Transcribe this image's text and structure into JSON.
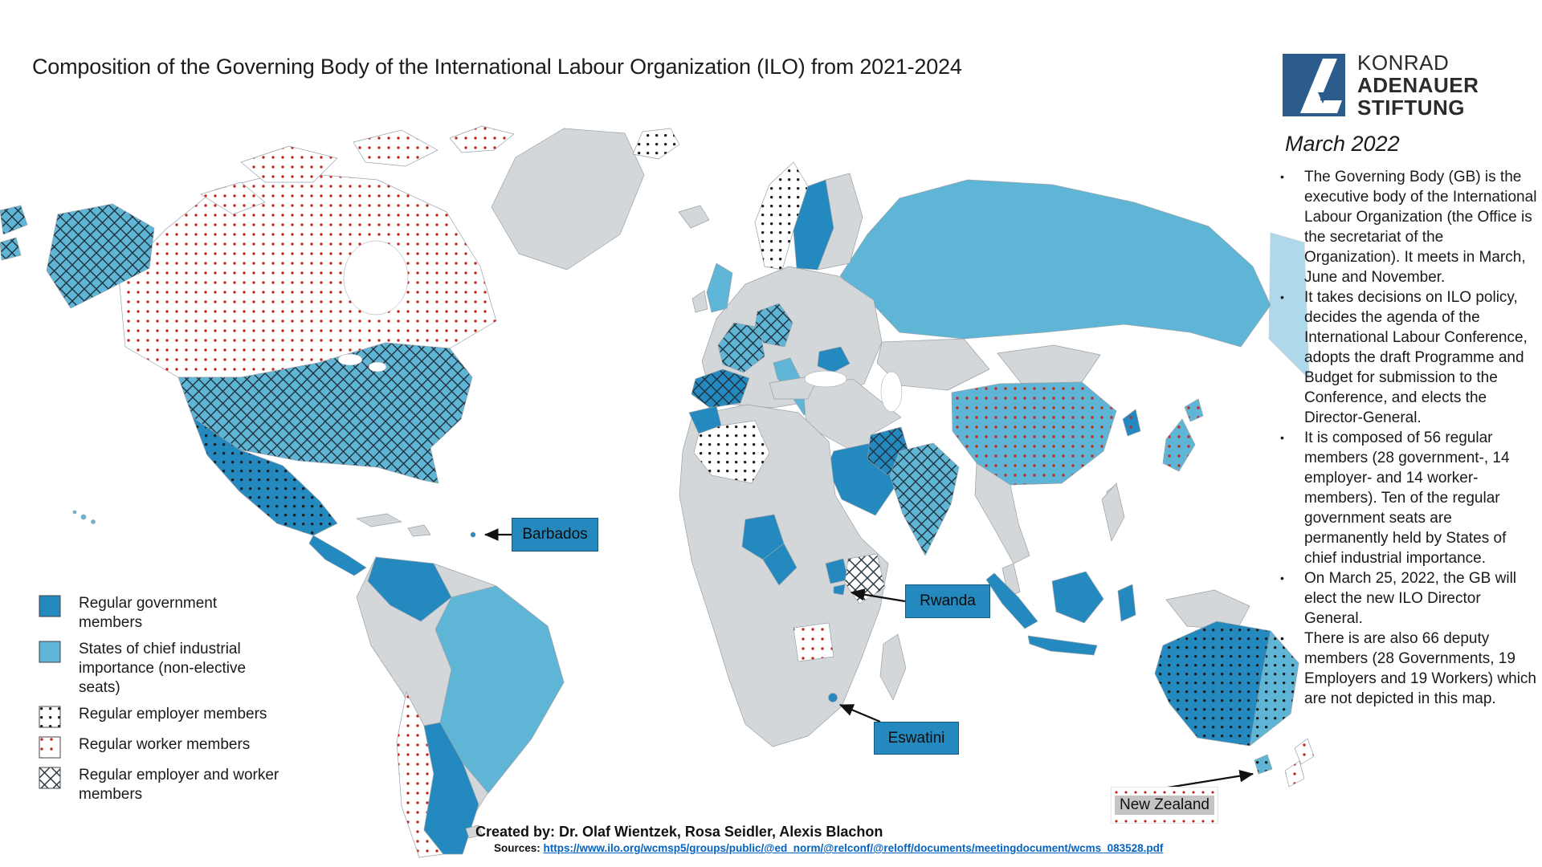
{
  "title": "Composition of the Governing Body of the International Labour Organization (ILO) from 2021-2024",
  "logo": {
    "name_lines": [
      "KONRAD",
      "ADENAUER",
      "STIFTUNG"
    ]
  },
  "date_label": "March 2022",
  "bullet_char": "•",
  "bullets": [
    "The Governing Body (GB) is the executive body of the International Labour Organization (the Office is the secretariat of the Organization). It meets in March, June and November.",
    "It takes decisions on ILO policy, decides the agenda of the International Labour Conference, adopts the draft Programme and Budget for submission to the Conference, and elects the Director-General.",
    "It is composed of 56 regular members (28 government-, 14 employer- and 14 worker-members). Ten of the regular government seats are permanently held by States of chief industrial importance.",
    "On March 25, 2022, the GB will elect the new ILO Director General.",
    "There is are also 66 deputy members (28 Governments, 19 Employers and 19 Workers) which are not depicted in this map."
  ],
  "legend": {
    "items": [
      {
        "label": "Regular government members",
        "base": "government",
        "overlay": null
      },
      {
        "label": "States of chief industrial importance (non-elective seats)",
        "base": "chief",
        "overlay": null
      },
      {
        "label": "Regular employer members",
        "base": "none",
        "overlay": "employer"
      },
      {
        "label": "Regular worker members",
        "base": "none",
        "overlay": "worker"
      },
      {
        "label": "Regular employer and worker members",
        "base": "none",
        "overlay": "employer-worker"
      }
    ]
  },
  "callouts": [
    {
      "label": "Barbados"
    },
    {
      "label": "Rwanda"
    },
    {
      "label": "Eswatini"
    },
    {
      "label": "New Zealand"
    }
  ],
  "credits": {
    "created_by": "Created by: Dr. Olaf Wientzek, Rosa Seidler, Alexis Blachon",
    "sources_label": "Sources:",
    "source_url": "https://www.ilo.org/wcmsp5/groups/public/@ed_norm/@relconf/@reloff/documents/meetingdocument/wcms_083528.pdf"
  },
  "colors": {
    "government": "#2489BE",
    "chief": "#5FB5D6",
    "land": "#D3D7D9",
    "land_stroke": "#98A2A8",
    "worker_dot": "#C22B22",
    "employer_dot": "#1B1B1B",
    "hatch": "#21313C",
    "label_box": "#2489BE",
    "link": "#0563C1",
    "kas_blue": "#2B5C8B",
    "ink": "#1A1A1A",
    "nz_label_bg": "#C4C4C4"
  },
  "map": {
    "regions": {
      "greenland": {
        "name": "Greenland",
        "base": "neutral",
        "overlay": null
      },
      "canada": {
        "name": "Canada",
        "base": "none",
        "overlay": "worker"
      },
      "alaska": {
        "name": "United States (Alaska)",
        "base": "chief",
        "overlay": "employer-worker"
      },
      "usa": {
        "name": "United States",
        "base": "chief",
        "overlay": "employer-worker"
      },
      "hawaii": {
        "name": "Hawaii (United States)",
        "base": "chief",
        "overlay": null
      },
      "mexico": {
        "name": "Mexico",
        "base": "government",
        "overlay": "employer"
      },
      "central-america": {
        "name": "Central America",
        "base": "government",
        "overlay": null
      },
      "cuba": {
        "name": "Cuba",
        "base": "neutral",
        "overlay": null
      },
      "hispaniola": {
        "name": "Hispaniola",
        "base": "neutral",
        "overlay": null
      },
      "barbados-pt": {
        "name": "Barbados",
        "base": "government",
        "overlay": null
      },
      "south-america": {
        "name": "South America",
        "base": "neutral",
        "overlay": null
      },
      "colombia": {
        "name": "Colombia",
        "base": "government",
        "overlay": null
      },
      "brazil": {
        "name": "Brazil",
        "base": "chief",
        "overlay": null
      },
      "chile": {
        "name": "Chile",
        "base": "none",
        "overlay": "worker"
      },
      "argentina": {
        "name": "Argentina",
        "base": "government",
        "overlay": null
      },
      "falklands": {
        "name": "Falkland Islands",
        "base": "neutral",
        "overlay": null
      },
      "iceland": {
        "name": "Iceland",
        "base": "neutral",
        "overlay": null
      },
      "europe": {
        "name": "Europe",
        "base": "neutral",
        "overlay": null
      },
      "svalbard": {
        "name": "Svalbard",
        "base": "none",
        "overlay": "employer"
      },
      "norway": {
        "name": "Norway",
        "base": "none",
        "overlay": "employer"
      },
      "sweden": {
        "name": "Sweden",
        "base": "government",
        "overlay": null
      },
      "finland": {
        "name": "Finland",
        "base": "neutral",
        "overlay": null
      },
      "uk": {
        "name": "United Kingdom",
        "base": "chief",
        "overlay": null
      },
      "ireland": {
        "name": "Ireland",
        "base": "neutral",
        "overlay": null
      },
      "france": {
        "name": "France",
        "base": "chief",
        "overlay": "employer-worker"
      },
      "germany": {
        "name": "Germany",
        "base": "chief",
        "overlay": "employer-worker"
      },
      "spain": {
        "name": "Spain",
        "base": "government",
        "overlay": "employer-worker"
      },
      "italy": {
        "name": "Italy",
        "base": "chief",
        "overlay": null
      },
      "romania": {
        "name": "Romania",
        "base": "government",
        "overlay": null
      },
      "russia": {
        "name": "Russia",
        "base": "chief",
        "overlay": null
      },
      "russia-east": {
        "name": "Russia (east)",
        "base": "chief",
        "overlay": null
      },
      "kazakhstan": {
        "name": "Kazakhstan",
        "base": "neutral",
        "overlay": null
      },
      "mongolia": {
        "name": "Mongolia",
        "base": "neutral",
        "overlay": null
      },
      "china": {
        "name": "China",
        "base": "chief",
        "overlay": "worker"
      },
      "korea": {
        "name": "South Korea",
        "base": "government",
        "overlay": "worker"
      },
      "japan": {
        "name": "Japan",
        "base": "chief",
        "overlay": "worker"
      },
      "taiwan": {
        "name": "Taiwan",
        "base": "neutral",
        "overlay": null
      },
      "india": {
        "name": "India",
        "base": "chief",
        "overlay": "employer-worker"
      },
      "pakistan": {
        "name": "Pakistan",
        "base": "government",
        "overlay": "employer-worker"
      },
      "middle-east": {
        "name": "Middle East",
        "base": "neutral",
        "overlay": null
      },
      "saudi": {
        "name": "Saudi Arabia",
        "base": "government",
        "overlay": null
      },
      "africa": {
        "name": "Africa",
        "base": "neutral",
        "overlay": null
      },
      "morocco": {
        "name": "Morocco",
        "base": "government",
        "overlay": null
      },
      "algeria": {
        "name": "Algeria",
        "base": "none",
        "overlay": "employer"
      },
      "nigeria": {
        "name": "Nigeria",
        "base": "government",
        "overlay": null
      },
      "cameroon": {
        "name": "Cameroon",
        "base": "government",
        "overlay": null
      },
      "uganda": {
        "name": "Uganda",
        "base": "government",
        "overlay": null
      },
      "rwanda": {
        "name": "Rwanda",
        "base": "government",
        "overlay": null
      },
      "kenya": {
        "name": "Kenya",
        "base": "none",
        "overlay": "employer-worker"
      },
      "angola": {
        "name": "Angola",
        "base": "none",
        "overlay": "worker"
      },
      "eswatini": {
        "name": "Eswatini",
        "base": "government",
        "overlay": null
      },
      "madagascar": {
        "name": "Madagascar",
        "base": "neutral",
        "overlay": null
      },
      "seasia": {
        "name": "Southeast Asia",
        "base": "neutral",
        "overlay": null
      },
      "indonesia": {
        "name": "Indonesia",
        "base": "government",
        "overlay": null
      },
      "philippines": {
        "name": "Philippines",
        "base": "neutral",
        "overlay": null
      },
      "newguinea": {
        "name": "New Guinea",
        "base": "neutral",
        "overlay": null
      },
      "australia": {
        "name": "Australia",
        "base": "government",
        "overlay": "employer"
      },
      "australia-east": {
        "name": "Australia (east)",
        "base": "chief",
        "overlay": "employer"
      },
      "tasmania": {
        "name": "Tasmania",
        "base": "chief",
        "overlay": "employer"
      },
      "nz": {
        "name": "New Zealand",
        "base": "none",
        "overlay": "worker"
      }
    }
  }
}
